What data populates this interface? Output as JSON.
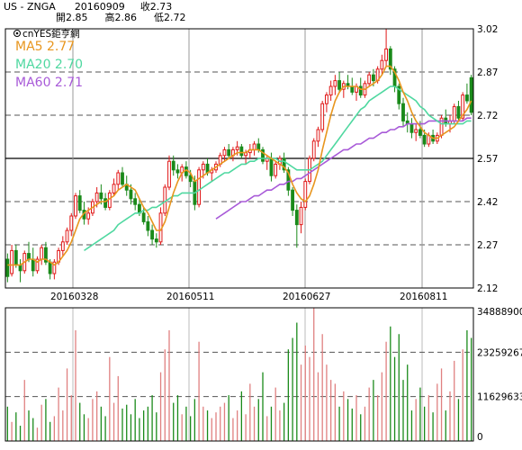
{
  "header": {
    "symbol": "US - ZNGA",
    "date": "20160909",
    "close_label": "收2.73",
    "open_label": "開2.85",
    "high_label": "高2.86",
    "low_label": "低2.72"
  },
  "chart_data": [
    {
      "type": "candlestick",
      "watermark": "cnYES鉅亨網",
      "ylim": [
        2.12,
        3.02
      ],
      "y_ticks": [
        "3.02",
        "2.87",
        "2.72",
        "2.57",
        "2.42",
        "2.27",
        "2.12"
      ],
      "x_ticks": [
        "20160328",
        "20160511",
        "20160627",
        "20160811"
      ],
      "grid": "dashed horizontal, vertical at date ticks",
      "moving_averages": [
        {
          "name": "MA5",
          "label": "MA5 2.77",
          "color": "#e8961e"
        },
        {
          "name": "MA20",
          "label": "MA20 2.70",
          "color": "#4fd8a0"
        },
        {
          "name": "MA60",
          "label": "MA60 2.71",
          "color": "#a85ad8"
        }
      ],
      "candle_colors": {
        "up": "#e01818",
        "down": "#1a8a1a",
        "flat": "#000000"
      },
      "candles": [
        [
          2.22,
          2.24,
          2.14,
          2.16
        ],
        [
          2.17,
          2.27,
          2.16,
          2.25
        ],
        [
          2.25,
          2.27,
          2.19,
          2.2
        ],
        [
          2.2,
          2.22,
          2.14,
          2.18
        ],
        [
          2.18,
          2.25,
          2.17,
          2.24
        ],
        [
          2.24,
          2.28,
          2.21,
          2.22
        ],
        [
          2.22,
          2.26,
          2.16,
          2.18
        ],
        [
          2.18,
          2.23,
          2.17,
          2.22
        ],
        [
          2.22,
          2.27,
          2.2,
          2.26
        ],
        [
          2.26,
          2.28,
          2.2,
          2.21
        ],
        [
          2.21,
          2.22,
          2.15,
          2.17
        ],
        [
          2.17,
          2.22,
          2.15,
          2.21
        ],
        [
          2.21,
          2.26,
          2.2,
          2.25
        ],
        [
          2.25,
          2.3,
          2.23,
          2.28
        ],
        [
          2.28,
          2.33,
          2.27,
          2.32
        ],
        [
          2.32,
          2.38,
          2.3,
          2.37
        ],
        [
          2.37,
          2.45,
          2.36,
          2.44
        ],
        [
          2.44,
          2.46,
          2.38,
          2.39
        ],
        [
          2.39,
          2.42,
          2.34,
          2.36
        ],
        [
          2.36,
          2.4,
          2.34,
          2.38
        ],
        [
          2.38,
          2.43,
          2.37,
          2.42
        ],
        [
          2.42,
          2.47,
          2.4,
          2.45
        ],
        [
          2.45,
          2.48,
          2.41,
          2.43
        ],
        [
          2.43,
          2.45,
          2.39,
          2.4
        ],
        [
          2.4,
          2.46,
          2.39,
          2.45
        ],
        [
          2.45,
          2.5,
          2.44,
          2.48
        ],
        [
          2.48,
          2.53,
          2.46,
          2.52
        ],
        [
          2.52,
          2.54,
          2.47,
          2.48
        ],
        [
          2.48,
          2.51,
          2.44,
          2.46
        ],
        [
          2.46,
          2.48,
          2.41,
          2.43
        ],
        [
          2.43,
          2.45,
          2.39,
          2.41
        ],
        [
          2.41,
          2.43,
          2.37,
          2.38
        ],
        [
          2.38,
          2.4,
          2.34,
          2.35
        ],
        [
          2.35,
          2.37,
          2.3,
          2.32
        ],
        [
          2.32,
          2.34,
          2.27,
          2.29
        ],
        [
          2.29,
          2.31,
          2.26,
          2.28
        ],
        [
          2.28,
          2.4,
          2.27,
          2.38
        ],
        [
          2.38,
          2.48,
          2.37,
          2.47
        ],
        [
          2.47,
          2.58,
          2.46,
          2.56
        ],
        [
          2.56,
          2.58,
          2.51,
          2.53
        ],
        [
          2.53,
          2.55,
          2.5,
          2.52
        ],
        [
          2.52,
          2.55,
          2.49,
          2.54
        ],
        [
          2.54,
          2.56,
          2.5,
          2.51
        ],
        [
          2.51,
          2.53,
          2.47,
          2.49
        ],
        [
          2.49,
          2.51,
          2.39,
          2.41
        ],
        [
          2.41,
          2.54,
          2.4,
          2.53
        ],
        [
          2.53,
          2.56,
          2.5,
          2.55
        ],
        [
          2.55,
          2.57,
          2.51,
          2.52
        ],
        [
          2.52,
          2.54,
          2.49,
          2.53
        ],
        [
          2.53,
          2.56,
          2.52,
          2.55
        ],
        [
          2.55,
          2.59,
          2.54,
          2.58
        ],
        [
          2.58,
          2.61,
          2.56,
          2.6
        ],
        [
          2.6,
          2.62,
          2.57,
          2.58
        ],
        [
          2.58,
          2.61,
          2.56,
          2.6
        ],
        [
          2.6,
          2.63,
          2.58,
          2.61
        ],
        [
          2.61,
          2.62,
          2.57,
          2.58
        ],
        [
          2.58,
          2.6,
          2.55,
          2.59
        ],
        [
          2.59,
          2.62,
          2.57,
          2.6
        ],
        [
          2.6,
          2.63,
          2.58,
          2.62
        ],
        [
          2.62,
          2.64,
          2.59,
          2.6
        ],
        [
          2.6,
          2.61,
          2.55,
          2.56
        ],
        [
          2.56,
          2.58,
          2.53,
          2.57
        ],
        [
          2.57,
          2.59,
          2.49,
          2.51
        ],
        [
          2.51,
          2.56,
          2.5,
          2.55
        ],
        [
          2.55,
          2.58,
          2.53,
          2.57
        ],
        [
          2.57,
          2.59,
          2.52,
          2.53
        ],
        [
          2.53,
          2.54,
          2.44,
          2.46
        ],
        [
          2.46,
          2.47,
          2.37,
          2.39
        ],
        [
          2.39,
          2.41,
          2.26,
          2.34
        ],
        [
          2.34,
          2.42,
          2.31,
          2.4
        ],
        [
          2.4,
          2.5,
          2.39,
          2.49
        ],
        [
          2.49,
          2.58,
          2.48,
          2.57
        ],
        [
          2.57,
          2.64,
          2.56,
          2.63
        ],
        [
          2.63,
          2.68,
          2.61,
          2.67
        ],
        [
          2.67,
          2.77,
          2.66,
          2.76
        ],
        [
          2.76,
          2.8,
          2.73,
          2.79
        ],
        [
          2.79,
          2.84,
          2.77,
          2.82
        ],
        [
          2.82,
          2.86,
          2.79,
          2.84
        ],
        [
          2.84,
          2.87,
          2.8,
          2.81
        ],
        [
          2.81,
          2.84,
          2.78,
          2.83
        ],
        [
          2.83,
          2.86,
          2.81,
          2.82
        ],
        [
          2.82,
          2.85,
          2.79,
          2.8
        ],
        [
          2.8,
          2.83,
          2.77,
          2.82
        ],
        [
          2.82,
          2.85,
          2.78,
          2.79
        ],
        [
          2.79,
          2.84,
          2.78,
          2.83
        ],
        [
          2.83,
          2.87,
          2.82,
          2.86
        ],
        [
          2.86,
          2.88,
          2.82,
          2.84
        ],
        [
          2.84,
          2.89,
          2.83,
          2.88
        ],
        [
          2.88,
          2.93,
          2.86,
          2.91
        ],
        [
          2.91,
          3.02,
          2.89,
          2.95
        ],
        [
          2.95,
          2.96,
          2.86,
          2.88
        ],
        [
          2.88,
          2.89,
          2.8,
          2.82
        ],
        [
          2.82,
          2.83,
          2.74,
          2.76
        ],
        [
          2.76,
          2.78,
          2.68,
          2.7
        ],
        [
          2.7,
          2.73,
          2.66,
          2.69
        ],
        [
          2.69,
          2.71,
          2.64,
          2.66
        ],
        [
          2.66,
          2.69,
          2.63,
          2.67
        ],
        [
          2.67,
          2.7,
          2.64,
          2.65
        ],
        [
          2.65,
          2.67,
          2.61,
          2.62
        ],
        [
          2.62,
          2.66,
          2.61,
          2.65
        ],
        [
          2.65,
          2.67,
          2.62,
          2.63
        ],
        [
          2.63,
          2.66,
          2.62,
          2.65
        ],
        [
          2.65,
          2.72,
          2.64,
          2.71
        ],
        [
          2.71,
          2.74,
          2.68,
          2.69
        ],
        [
          2.69,
          2.72,
          2.66,
          2.7
        ],
        [
          2.7,
          2.76,
          2.69,
          2.75
        ],
        [
          2.75,
          2.77,
          2.7,
          2.71
        ],
        [
          2.71,
          2.8,
          2.7,
          2.79
        ],
        [
          2.79,
          2.83,
          2.76,
          2.77
        ],
        [
          2.85,
          2.86,
          2.72,
          2.73
        ]
      ],
      "ma5": [
        2.2,
        2.2,
        2.2,
        2.2,
        2.21,
        2.22,
        2.22,
        2.21,
        2.22,
        2.22,
        2.21,
        2.2,
        2.21,
        2.23,
        2.25,
        2.28,
        2.32,
        2.36,
        2.38,
        2.39,
        2.4,
        2.41,
        2.42,
        2.42,
        2.43,
        2.44,
        2.46,
        2.47,
        2.48,
        2.47,
        2.46,
        2.43,
        2.4,
        2.38,
        2.35,
        2.32,
        2.32,
        2.35,
        2.4,
        2.45,
        2.49,
        2.52,
        2.53,
        2.52,
        2.49,
        2.5,
        2.51,
        2.52,
        2.53,
        2.54,
        2.55,
        2.56,
        2.57,
        2.58,
        2.59,
        2.59,
        2.59,
        2.6,
        2.6,
        2.6,
        2.59,
        2.58,
        2.57,
        2.56,
        2.55,
        2.54,
        2.52,
        2.48,
        2.45,
        2.43,
        2.42,
        2.44,
        2.48,
        2.53,
        2.6,
        2.66,
        2.72,
        2.77,
        2.8,
        2.82,
        2.82,
        2.82,
        2.82,
        2.81,
        2.81,
        2.82,
        2.83,
        2.84,
        2.86,
        2.89,
        2.89,
        2.87,
        2.84,
        2.8,
        2.77,
        2.73,
        2.7,
        2.68,
        2.66,
        2.65,
        2.64,
        2.64,
        2.65,
        2.66,
        2.67,
        2.68,
        2.7,
        2.72,
        2.74,
        2.77
      ],
      "ma20": [
        null,
        null,
        null,
        null,
        null,
        null,
        null,
        null,
        null,
        null,
        null,
        null,
        null,
        null,
        null,
        null,
        null,
        null,
        2.25,
        2.26,
        2.27,
        2.28,
        2.29,
        2.3,
        2.31,
        2.32,
        2.34,
        2.35,
        2.36,
        2.37,
        2.38,
        2.38,
        2.39,
        2.39,
        2.4,
        2.4,
        2.41,
        2.42,
        2.43,
        2.44,
        2.44,
        2.45,
        2.45,
        2.45,
        2.45,
        2.46,
        2.47,
        2.48,
        2.49,
        2.5,
        2.51,
        2.52,
        2.52,
        2.53,
        2.54,
        2.55,
        2.55,
        2.56,
        2.56,
        2.57,
        2.57,
        2.57,
        2.57,
        2.57,
        2.56,
        2.56,
        2.55,
        2.54,
        2.53,
        2.53,
        2.53,
        2.53,
        2.54,
        2.55,
        2.56,
        2.58,
        2.6,
        2.62,
        2.64,
        2.66,
        2.68,
        2.7,
        2.72,
        2.74,
        2.75,
        2.77,
        2.78,
        2.79,
        2.8,
        2.81,
        2.82,
        2.82,
        2.81,
        2.8,
        2.79,
        2.78,
        2.77,
        2.75,
        2.74,
        2.72,
        2.71,
        2.7,
        2.69,
        2.69,
        2.69,
        2.69,
        2.69,
        2.69,
        2.7,
        2.7
      ],
      "ma60": [
        null,
        null,
        null,
        null,
        null,
        null,
        null,
        null,
        null,
        null,
        null,
        null,
        null,
        null,
        null,
        null,
        null,
        null,
        null,
        null,
        null,
        null,
        null,
        null,
        null,
        null,
        null,
        null,
        null,
        null,
        null,
        null,
        null,
        null,
        null,
        null,
        null,
        null,
        null,
        null,
        null,
        null,
        null,
        null,
        null,
        null,
        null,
        null,
        null,
        2.36,
        2.37,
        2.38,
        2.39,
        2.4,
        2.41,
        2.42,
        2.42,
        2.43,
        2.44,
        2.44,
        2.45,
        2.46,
        2.46,
        2.47,
        2.48,
        2.48,
        2.49,
        2.49,
        2.5,
        2.5,
        2.51,
        2.52,
        2.53,
        2.54,
        2.55,
        2.56,
        2.57,
        2.58,
        2.59,
        2.6,
        2.6,
        2.61,
        2.62,
        2.62,
        2.63,
        2.64,
        2.64,
        2.65,
        2.66,
        2.66,
        2.67,
        2.67,
        2.68,
        2.68,
        2.69,
        2.69,
        2.69,
        2.69,
        2.69,
        2.7,
        2.7,
        2.7,
        2.7,
        2.7,
        2.7,
        2.7,
        2.7,
        2.7,
        2.71,
        2.71
      ]
    },
    {
      "type": "bar",
      "ylim": [
        0,
        34888900
      ],
      "y_ticks": [
        "34888900",
        "23259267",
        "11629633",
        "0"
      ],
      "bar_colors": {
        "up": "#e08080",
        "down": "#1a8a1a",
        "flat": "#000000"
      },
      "volumes": [
        9000000,
        5000000,
        7500000,
        4000000,
        16000000,
        8000000,
        6000000,
        3500000,
        9500000,
        11000000,
        5000000,
        6500000,
        14000000,
        8000000,
        19000000,
        12000000,
        29000000,
        10000000,
        7000000,
        6000000,
        11000000,
        13000000,
        9000000,
        6500000,
        22000000,
        10000000,
        17000000,
        8500000,
        9500000,
        7000000,
        11000000,
        6000000,
        8000000,
        9000000,
        12000000,
        7500000,
        18000000,
        24000000,
        29000000,
        10000000,
        12000000,
        7000000,
        9000000,
        6500000,
        11000000,
        26000000,
        9000000,
        8000000,
        6000000,
        7500000,
        9000000,
        10000000,
        12000000,
        6000000,
        8000000,
        13000000,
        7000000,
        15000000,
        9000000,
        11000000,
        18000000,
        6500000,
        9000000,
        14000000,
        8000000,
        10000000,
        24000000,
        27000000,
        31000000,
        20000000,
        25000000,
        22000000,
        34888900,
        18000000,
        28000000,
        20000000,
        16000000,
        15000000,
        9000000,
        13000000,
        11000000,
        8500000,
        12000000,
        7000000,
        9000000,
        14000000,
        16000000,
        12000000,
        18000000,
        26000000,
        30000000,
        22000000,
        28000000,
        16000000,
        20000000,
        8000000,
        11000000,
        14000000,
        9000000,
        12000000,
        7500000,
        15000000,
        19000000,
        8000000,
        13000000,
        21000000,
        11000000,
        24000000,
        29000000,
        27000000
      ]
    }
  ]
}
